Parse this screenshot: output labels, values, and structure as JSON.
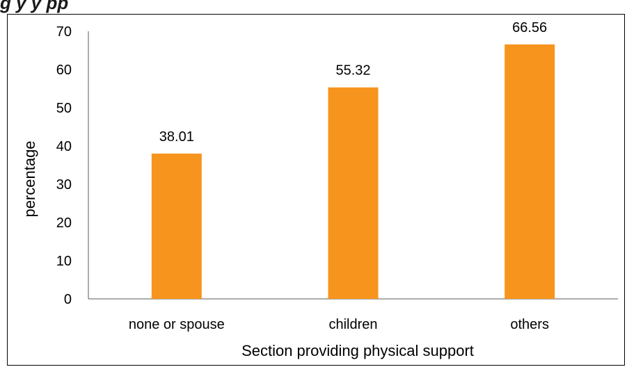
{
  "header": {
    "title_partial": "g                                      y     y          pp"
  },
  "chart_data": {
    "type": "bar",
    "categories": [
      "none or spouse",
      "children",
      "others"
    ],
    "values": [
      38.01,
      55.32,
      66.56
    ],
    "value_labels": [
      "38.01",
      "55.32",
      "66.56"
    ],
    "title": "",
    "xlabel": "Section providing physical support",
    "ylabel": "percentage",
    "ylim": [
      0,
      70
    ],
    "yticks": [
      0,
      10,
      20,
      30,
      40,
      50,
      60,
      70
    ],
    "grid": false,
    "legend": "none",
    "bar_color": "#F7941D"
  }
}
